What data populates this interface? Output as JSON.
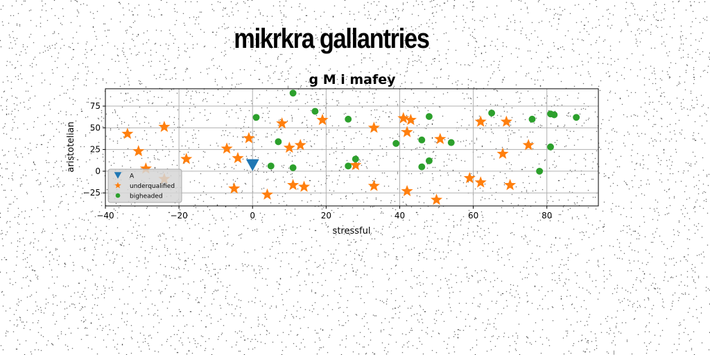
{
  "headline": "mikrkra gallantries",
  "chart_data": {
    "type": "scatter",
    "title": "g M i mafey",
    "xlabel": "stressful",
    "ylabel": "aristotelian",
    "xlim": [
      -40,
      94
    ],
    "ylim": [
      -40,
      95
    ],
    "xticks": [
      -40,
      -20,
      0,
      20,
      40,
      60,
      80
    ],
    "yticks": [
      -25,
      0,
      25,
      50,
      75
    ],
    "grid": true,
    "legend": "lower-left",
    "series": [
      {
        "name": "A",
        "marker": "triangle-down",
        "color": "#1f77b4",
        "points": [
          [
            0,
            7
          ]
        ]
      },
      {
        "name": "underqualified",
        "marker": "star",
        "color": "#ff7f0e",
        "points": [
          [
            -34,
            43
          ],
          [
            -31,
            23
          ],
          [
            -29,
            3
          ],
          [
            -24,
            51
          ],
          [
            -24,
            -9
          ],
          [
            -18,
            14
          ],
          [
            -7,
            26
          ],
          [
            -4,
            15
          ],
          [
            -5,
            -20
          ],
          [
            -1,
            38
          ],
          [
            4,
            -27
          ],
          [
            8,
            55
          ],
          [
            10,
            27
          ],
          [
            11,
            -16
          ],
          [
            13,
            30
          ],
          [
            14,
            -18
          ],
          [
            19,
            59
          ],
          [
            28,
            7
          ],
          [
            33,
            50
          ],
          [
            33,
            -17
          ],
          [
            41,
            61
          ],
          [
            42,
            45
          ],
          [
            43,
            59
          ],
          [
            42,
            -23
          ],
          [
            50,
            -33
          ],
          [
            51,
            37
          ],
          [
            59,
            -8
          ],
          [
            62,
            57
          ],
          [
            62,
            -13
          ],
          [
            68,
            20
          ],
          [
            69,
            57
          ],
          [
            70,
            -16
          ],
          [
            75,
            30
          ]
        ]
      },
      {
        "name": "bigheaded",
        "marker": "circle",
        "color": "#2ca02c",
        "points": [
          [
            1,
            62
          ],
          [
            5,
            6
          ],
          [
            7,
            34
          ],
          [
            11,
            4
          ],
          [
            11,
            90
          ],
          [
            17,
            69
          ],
          [
            26,
            60
          ],
          [
            26,
            6
          ],
          [
            28,
            14
          ],
          [
            39,
            32
          ],
          [
            46,
            36
          ],
          [
            46,
            5
          ],
          [
            48,
            63
          ],
          [
            48,
            12
          ],
          [
            54,
            33
          ],
          [
            65,
            67
          ],
          [
            76,
            60
          ],
          [
            78,
            0
          ],
          [
            81,
            66
          ],
          [
            81,
            28
          ],
          [
            82,
            65
          ],
          [
            88,
            62
          ]
        ]
      }
    ]
  }
}
